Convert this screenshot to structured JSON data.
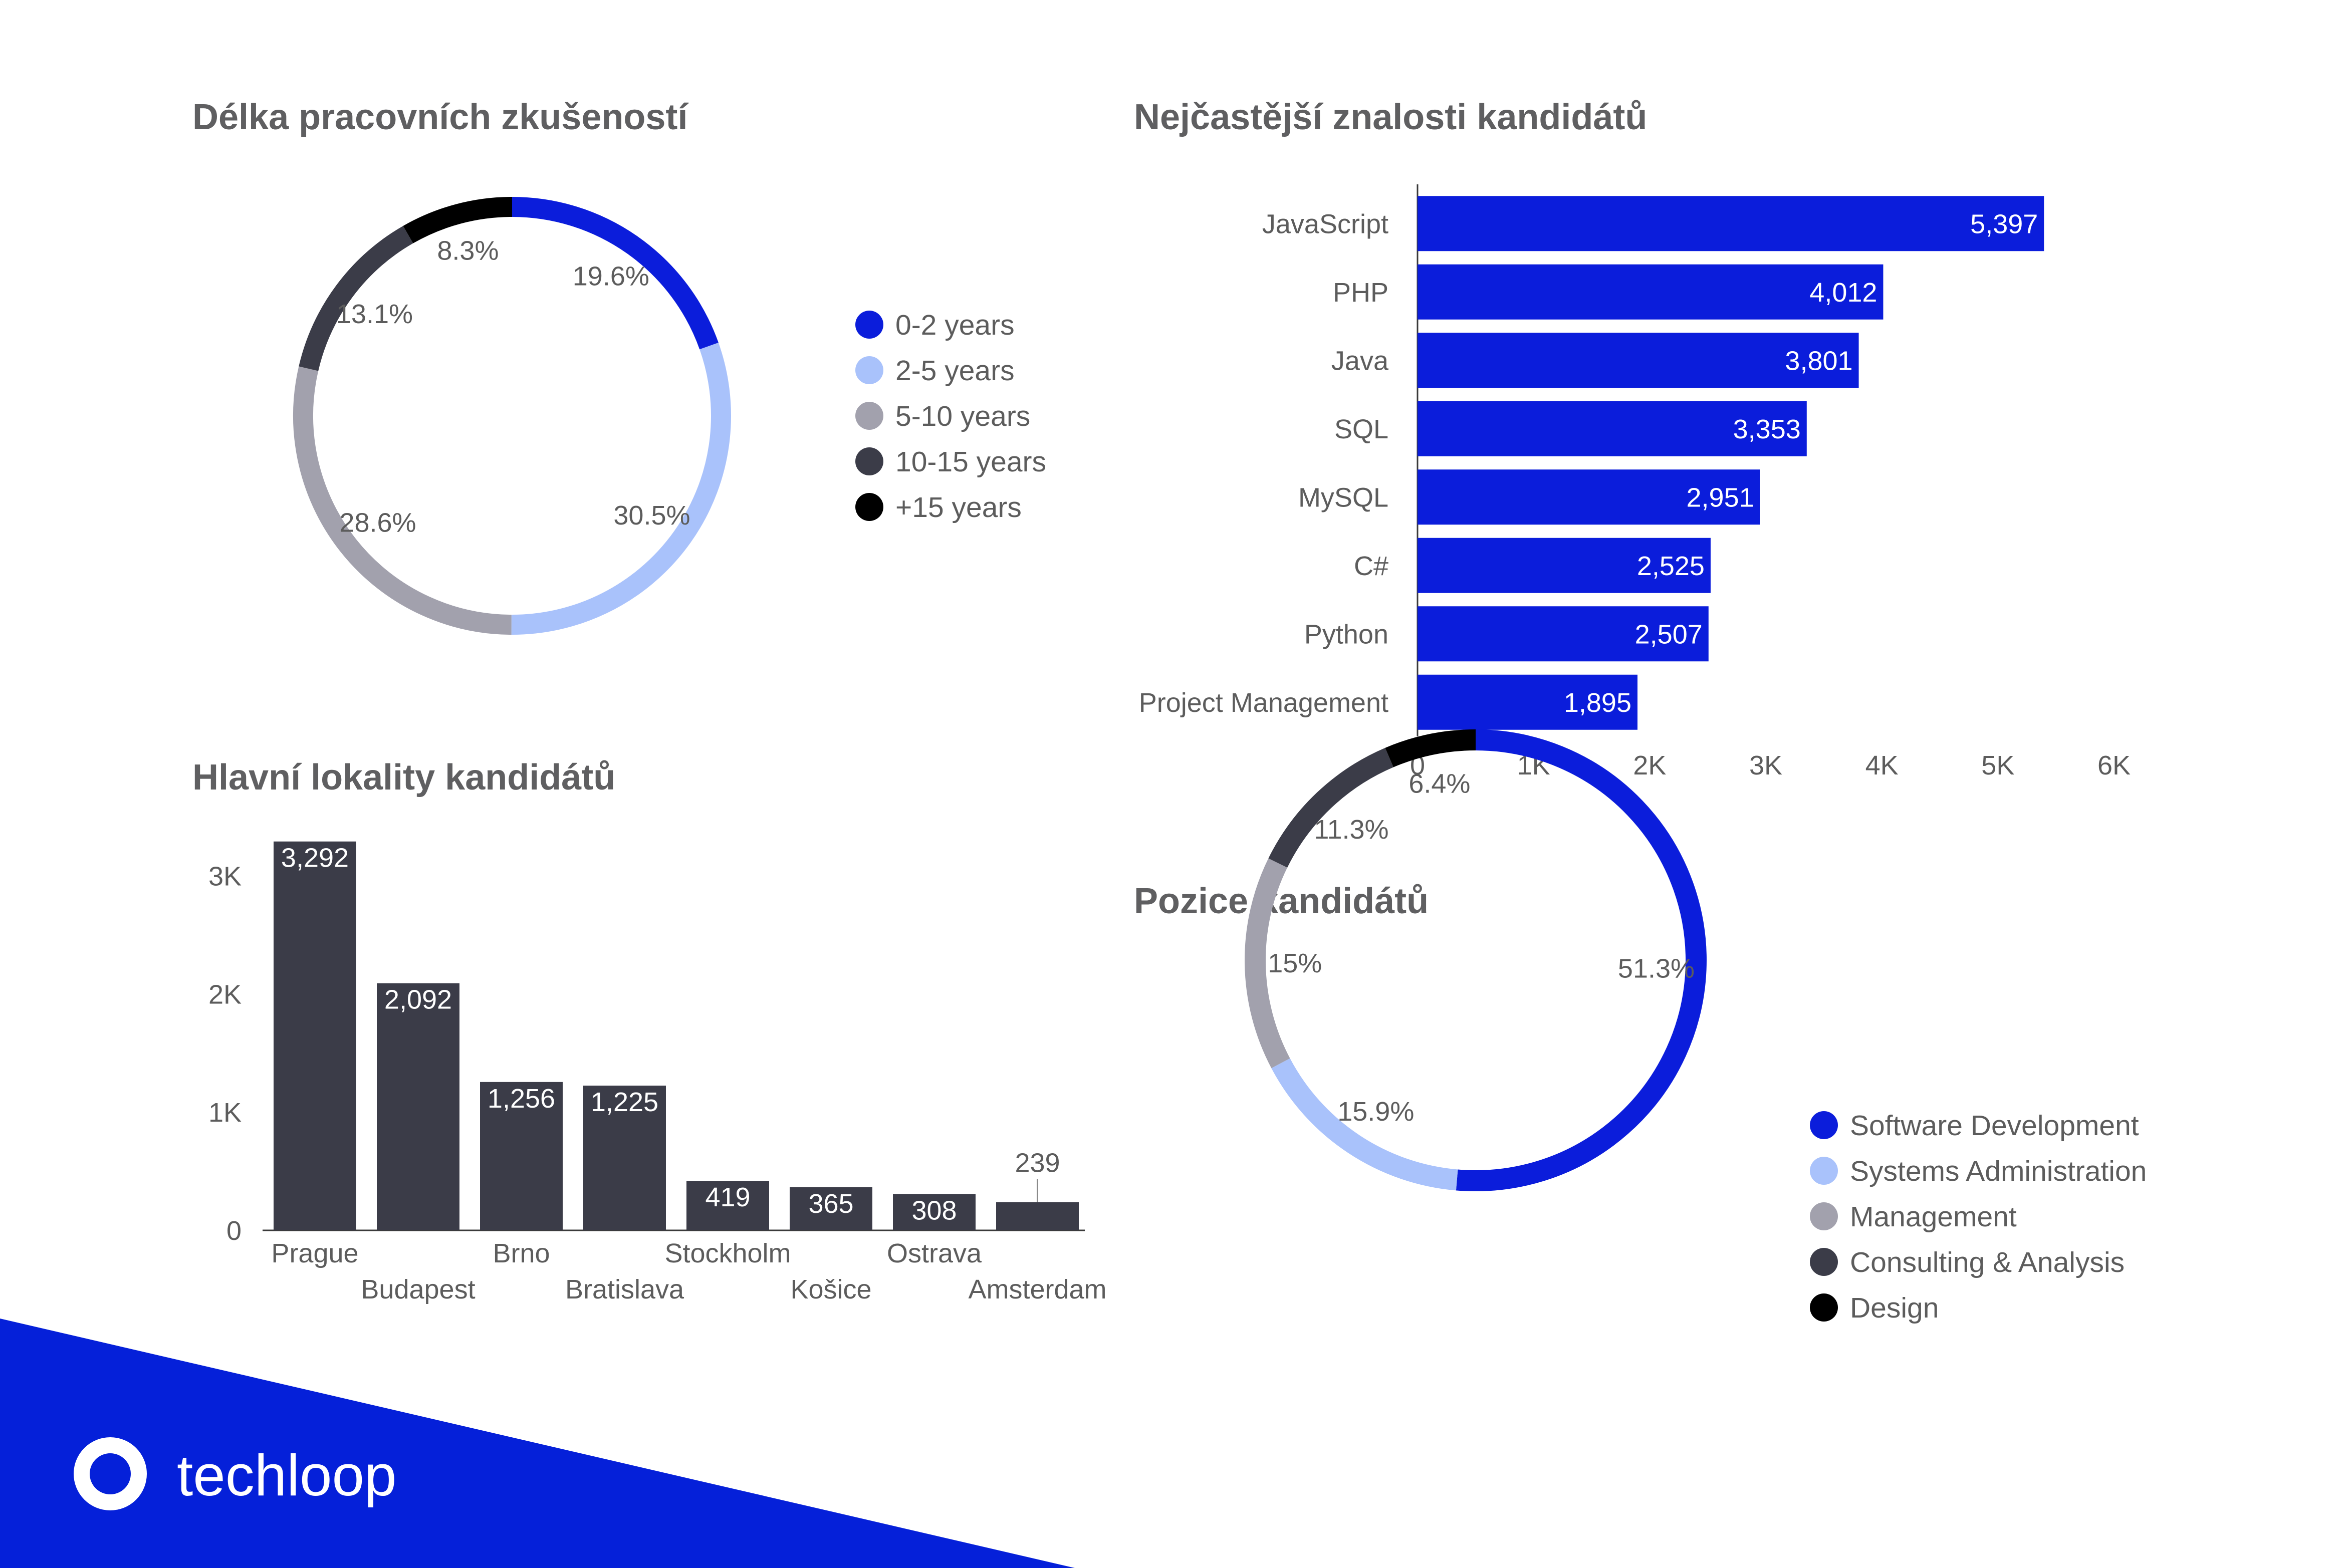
{
  "colors": {
    "accent_blue": "#0b1ddb",
    "light_blue": "#a9c2fb",
    "grey": "#a2a1ad",
    "dark": "#3b3c48",
    "black": "#000000",
    "banner": "#0520d9"
  },
  "brand": {
    "name": "techloop",
    "logo_icon": "techloop-ring-logo-icon"
  },
  "chart_data": [
    {
      "type": "pie",
      "variant": "donut",
      "title": "Délka pracovních zkušeností",
      "legend_position": "right",
      "slices": [
        {
          "label": "0-2 years",
          "value": 19.6,
          "display": "19.6%",
          "color": "#0b1ddb"
        },
        {
          "label": "2-5 years",
          "value": 30.5,
          "display": "30.5%",
          "color": "#a9c2fb"
        },
        {
          "label": "5-10 years",
          "value": 28.6,
          "display": "28.6%",
          "color": "#a2a1ad"
        },
        {
          "label": "10-15 years",
          "value": 13.1,
          "display": "13.1%",
          "color": "#3b3c48"
        },
        {
          "label": "+15 years",
          "value": 8.3,
          "display": "8.3%",
          "color": "#000000"
        }
      ]
    },
    {
      "type": "bar",
      "orientation": "horizontal",
      "title": "Nejčastější znalosti kandidátů",
      "categories": [
        "JavaScript",
        "PHP",
        "Java",
        "SQL",
        "MySQL",
        "C#",
        "Python",
        "Project Management"
      ],
      "values": [
        5397,
        4012,
        3801,
        3353,
        2951,
        2525,
        2507,
        1895
      ],
      "value_labels": [
        "5,397",
        "4,012",
        "3,801",
        "3,353",
        "2,951",
        "2,525",
        "2,507",
        "1,895"
      ],
      "xlim": [
        0,
        6000
      ],
      "xticks": [
        {
          "value": 0,
          "label": "0"
        },
        {
          "value": 1000,
          "label": "1K"
        },
        {
          "value": 2000,
          "label": "2K"
        },
        {
          "value": 3000,
          "label": "3K"
        },
        {
          "value": 4000,
          "label": "4K"
        },
        {
          "value": 5000,
          "label": "5K"
        },
        {
          "value": 6000,
          "label": "6K"
        }
      ],
      "color": "#0b1ddb",
      "grid": false
    },
    {
      "type": "bar",
      "orientation": "vertical",
      "title": "Hlavní lokality kandidátů",
      "categories": [
        "Prague",
        "Budapest",
        "Brno",
        "Bratislava",
        "Stockholm",
        "Košice",
        "Ostrava",
        "Amsterdam"
      ],
      "values": [
        3292,
        2092,
        1256,
        1225,
        419,
        365,
        308,
        239
      ],
      "value_labels": [
        "3,292",
        "2,092",
        "1,256",
        "1,225",
        "419",
        "365",
        "308",
        "239"
      ],
      "ylim": [
        0,
        3300
      ],
      "yticks": [
        {
          "value": 0,
          "label": "0"
        },
        {
          "value": 1000,
          "label": "1K"
        },
        {
          "value": 2000,
          "label": "2K"
        },
        {
          "value": 3000,
          "label": "3K"
        }
      ],
      "color": "#3b3c48",
      "grid": false
    },
    {
      "type": "pie",
      "variant": "donut",
      "title": "Pozice kandidátů",
      "legend_position": "right",
      "slices": [
        {
          "label": "Software Development",
          "value": 51.3,
          "display": "51.3%",
          "color": "#0b1ddb"
        },
        {
          "label": "Systems Administration",
          "value": 15.9,
          "display": "15.9%",
          "color": "#a9c2fb"
        },
        {
          "label": "Management",
          "value": 15,
          "display": "15%",
          "color": "#a2a1ad"
        },
        {
          "label": "Consulting & Analysis",
          "value": 11.3,
          "display": "11.3%",
          "color": "#3b3c48"
        },
        {
          "label": "Design",
          "value": 6.4,
          "display": "6.4%",
          "color": "#000000"
        }
      ]
    }
  ]
}
